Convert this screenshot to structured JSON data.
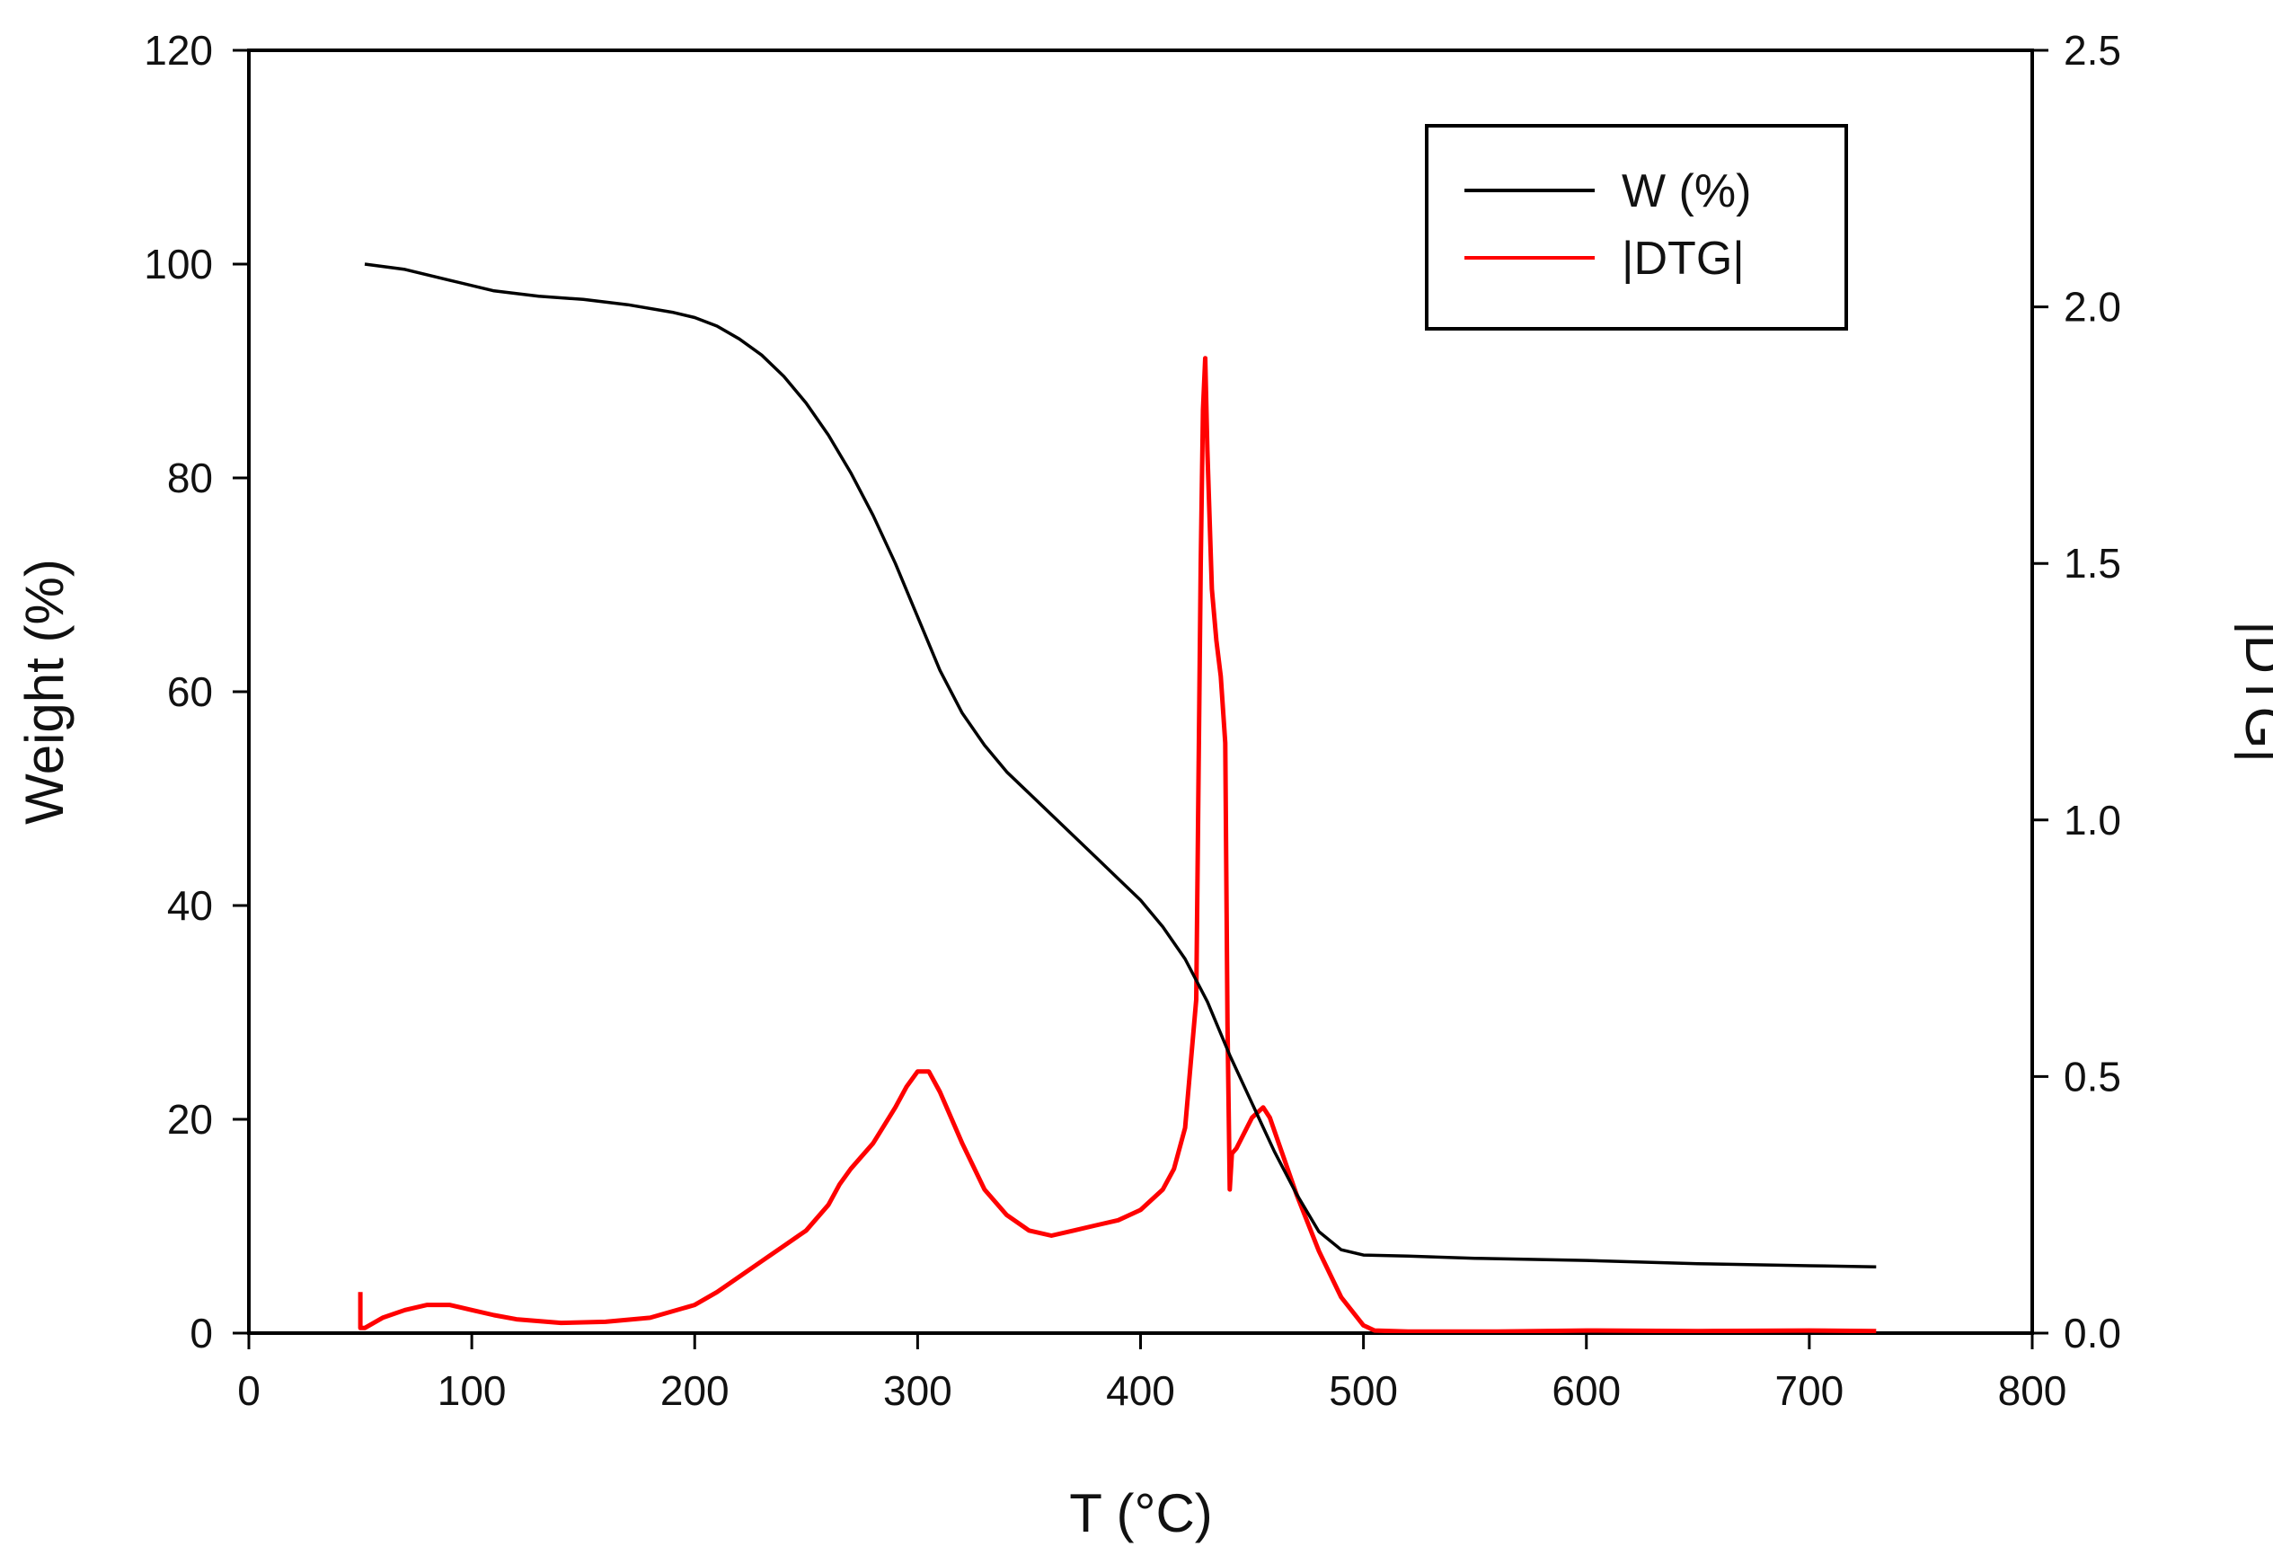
{
  "colors": {
    "weight": "#000000",
    "dtg": "#ff0000",
    "axis": "#000000",
    "background": "#ffffff"
  },
  "chart_data": {
    "type": "line",
    "title": "",
    "xlabel": "T (°C)",
    "ylabel": "Weight (%)",
    "y2label": "|DTG|",
    "xlim": [
      0,
      800
    ],
    "ylim": [
      0,
      120
    ],
    "y2lim": [
      0,
      2.5
    ],
    "xticks": [
      0,
      100,
      200,
      300,
      400,
      500,
      600,
      700,
      800
    ],
    "yticks": [
      0,
      20,
      40,
      60,
      80,
      100,
      120
    ],
    "y2ticks": [
      "0.0",
      "0.5",
      "1.0",
      "1.5",
      "2.0",
      "2.5"
    ],
    "grid": false,
    "legend_position": "top-right",
    "series": [
      {
        "name": "W (%)",
        "axis": "left",
        "color": "#000000",
        "x": [
          52,
          70,
          90,
          110,
          130,
          150,
          170,
          190,
          200,
          210,
          220,
          230,
          240,
          250,
          260,
          270,
          280,
          290,
          300,
          310,
          320,
          330,
          340,
          350,
          360,
          370,
          380,
          390,
          400,
          410,
          420,
          430,
          440,
          450,
          460,
          470,
          480,
          490,
          500,
          520,
          550,
          600,
          650,
          700,
          730
        ],
        "values": [
          100,
          99.5,
          98.5,
          97.5,
          97.0,
          96.7,
          96.2,
          95.5,
          95.0,
          94.2,
          93.0,
          91.5,
          89.5,
          87.0,
          84.0,
          80.5,
          76.5,
          72.0,
          67.0,
          62.0,
          58.0,
          55.0,
          52.5,
          50.5,
          48.5,
          46.5,
          44.5,
          42.5,
          40.5,
          38.0,
          35.0,
          31.0,
          26.0,
          21.5,
          17.0,
          13.0,
          9.5,
          7.8,
          7.3,
          7.2,
          7.0,
          6.8,
          6.5,
          6.3,
          6.2
        ]
      },
      {
        "name": "|DTG|",
        "axis": "right",
        "color": "#ff0000",
        "x": [
          50,
          50,
          51,
          52,
          60,
          70,
          80,
          90,
          100,
          110,
          120,
          140,
          160,
          180,
          200,
          210,
          220,
          230,
          240,
          250,
          260,
          265,
          270,
          280,
          290,
          295,
          300,
          305,
          310,
          320,
          330,
          340,
          350,
          360,
          370,
          380,
          390,
          400,
          410,
          415,
          420,
          425,
          427,
          428,
          429,
          430,
          432,
          434,
          436,
          438,
          439,
          440,
          441,
          443,
          450,
          455,
          458,
          462,
          470,
          480,
          490,
          500,
          505,
          520,
          560,
          600,
          650,
          700,
          730
        ],
        "values": [
          0.08,
          0.01,
          0.01,
          0.01,
          0.03,
          0.045,
          0.055,
          0.055,
          0.045,
          0.035,
          0.027,
          0.02,
          0.022,
          0.03,
          0.055,
          0.08,
          0.11,
          0.14,
          0.17,
          0.2,
          0.25,
          0.29,
          0.32,
          0.37,
          0.44,
          0.48,
          0.51,
          0.51,
          0.47,
          0.37,
          0.28,
          0.23,
          0.2,
          0.19,
          0.2,
          0.21,
          0.22,
          0.24,
          0.28,
          0.32,
          0.4,
          0.65,
          1.5,
          1.8,
          1.9,
          1.72,
          1.45,
          1.35,
          1.28,
          1.15,
          0.6,
          0.28,
          0.35,
          0.36,
          0.42,
          0.44,
          0.42,
          0.37,
          0.27,
          0.16,
          0.07,
          0.015,
          0.005,
          0.003,
          0.003,
          0.005,
          0.004,
          0.005,
          0.004
        ]
      }
    ]
  }
}
